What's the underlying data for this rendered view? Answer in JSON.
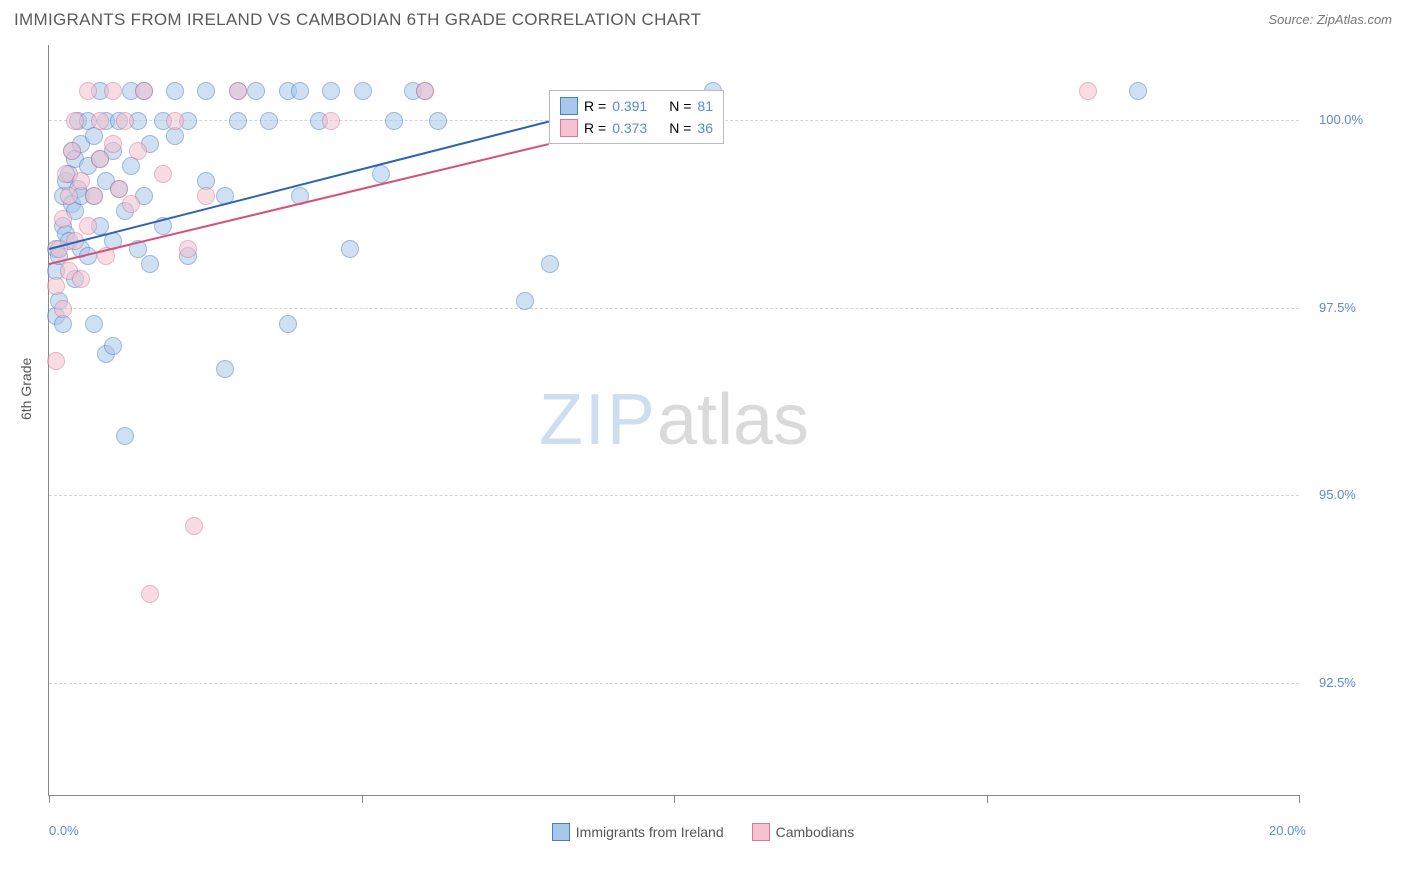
{
  "title": "IMMIGRANTS FROM IRELAND VS CAMBODIAN 6TH GRADE CORRELATION CHART",
  "source": "Source: ZipAtlas.com",
  "ylabel": "6th Grade",
  "watermark": {
    "zip": "ZIP",
    "atlas": "atlas"
  },
  "chart": {
    "type": "scatter",
    "xlim": [
      0,
      20
    ],
    "ylim": [
      91,
      101
    ],
    "xtick_positions": [
      0,
      5,
      10,
      15,
      20
    ],
    "xtick_labels": [
      "0.0%",
      "",
      "",
      "",
      "20.0%"
    ],
    "ytick_positions": [
      92.5,
      95.0,
      97.5,
      100.0
    ],
    "ytick_labels": [
      "92.5%",
      "95.0%",
      "97.5%",
      "100.0%"
    ],
    "grid_color": "#d5d5d5",
    "axis_color": "#888888",
    "background_color": "#ffffff",
    "marker_size": 16,
    "marker_opacity": 0.55
  },
  "series": [
    {
      "name": "Immigrants from Ireland",
      "fill": "#a9c7ea",
      "stroke": "#4b7fc0",
      "line_color": "#2e63b3",
      "r_label": "R =",
      "r": "0.391",
      "n_label": "N =",
      "n": "81",
      "trend": {
        "x1": 0,
        "y1": 98.3,
        "x2": 8.0,
        "y2": 100.0
      },
      "points": [
        [
          0.1,
          97.4
        ],
        [
          0.1,
          98.0
        ],
        [
          0.1,
          98.3
        ],
        [
          0.15,
          97.6
        ],
        [
          0.15,
          98.2
        ],
        [
          0.2,
          97.3
        ],
        [
          0.2,
          98.6
        ],
        [
          0.2,
          99.0
        ],
        [
          0.25,
          98.5
        ],
        [
          0.25,
          99.2
        ],
        [
          0.3,
          98.4
        ],
        [
          0.3,
          99.3
        ],
        [
          0.35,
          98.9
        ],
        [
          0.35,
          99.6
        ],
        [
          0.4,
          97.9
        ],
        [
          0.4,
          98.8
        ],
        [
          0.4,
          99.5
        ],
        [
          0.45,
          99.1
        ],
        [
          0.45,
          100.0
        ],
        [
          0.5,
          98.3
        ],
        [
          0.5,
          99.0
        ],
        [
          0.5,
          99.7
        ],
        [
          0.6,
          98.2
        ],
        [
          0.6,
          99.4
        ],
        [
          0.6,
          100.0
        ],
        [
          0.7,
          97.3
        ],
        [
          0.7,
          99.0
        ],
        [
          0.7,
          99.8
        ],
        [
          0.8,
          98.6
        ],
        [
          0.8,
          99.5
        ],
        [
          0.8,
          100.4
        ],
        [
          0.9,
          96.9
        ],
        [
          0.9,
          99.2
        ],
        [
          0.9,
          100.0
        ],
        [
          1.0,
          97.0
        ],
        [
          1.0,
          98.4
        ],
        [
          1.0,
          99.6
        ],
        [
          1.1,
          99.1
        ],
        [
          1.1,
          100.0
        ],
        [
          1.2,
          95.8
        ],
        [
          1.2,
          98.8
        ],
        [
          1.3,
          99.4
        ],
        [
          1.3,
          100.4
        ],
        [
          1.4,
          98.3
        ],
        [
          1.4,
          100.0
        ],
        [
          1.5,
          99.0
        ],
        [
          1.5,
          100.4
        ],
        [
          1.6,
          98.1
        ],
        [
          1.6,
          99.7
        ],
        [
          1.8,
          98.6
        ],
        [
          1.8,
          100.0
        ],
        [
          2.0,
          99.8
        ],
        [
          2.0,
          100.4
        ],
        [
          2.2,
          98.2
        ],
        [
          2.2,
          100.0
        ],
        [
          2.5,
          99.2
        ],
        [
          2.5,
          100.4
        ],
        [
          2.8,
          96.7
        ],
        [
          2.8,
          99.0
        ],
        [
          3.0,
          100.0
        ],
        [
          3.0,
          100.4
        ],
        [
          3.3,
          100.4
        ],
        [
          3.5,
          100.0
        ],
        [
          3.8,
          97.3
        ],
        [
          3.8,
          100.4
        ],
        [
          4.0,
          99.0
        ],
        [
          4.0,
          100.4
        ],
        [
          4.3,
          100.0
        ],
        [
          4.5,
          100.4
        ],
        [
          4.8,
          98.3
        ],
        [
          5.0,
          100.4
        ],
        [
          5.3,
          99.3
        ],
        [
          5.5,
          100.0
        ],
        [
          5.8,
          100.4
        ],
        [
          6.0,
          100.4
        ],
        [
          6.2,
          100.0
        ],
        [
          7.6,
          97.6
        ],
        [
          8.0,
          98.1
        ],
        [
          10.3,
          100.0
        ],
        [
          10.6,
          100.4
        ],
        [
          17.4,
          100.4
        ]
      ]
    },
    {
      "name": "Cambodians",
      "fill": "#f3c1cf",
      "stroke": "#d67a96",
      "line_color": "#d94f78",
      "r_label": "R =",
      "r": "0.373",
      "n_label": "N =",
      "n": "36",
      "trend": {
        "x1": 0,
        "y1": 98.1,
        "x2": 8.0,
        "y2": 99.7
      },
      "points": [
        [
          0.1,
          96.8
        ],
        [
          0.1,
          97.8
        ],
        [
          0.15,
          98.3
        ],
        [
          0.2,
          97.5
        ],
        [
          0.2,
          98.7
        ],
        [
          0.25,
          99.3
        ],
        [
          0.3,
          98.0
        ],
        [
          0.3,
          99.0
        ],
        [
          0.35,
          99.6
        ],
        [
          0.4,
          98.4
        ],
        [
          0.4,
          100.0
        ],
        [
          0.5,
          97.9
        ],
        [
          0.5,
          99.2
        ],
        [
          0.6,
          98.6
        ],
        [
          0.6,
          100.4
        ],
        [
          0.7,
          99.0
        ],
        [
          0.8,
          99.5
        ],
        [
          0.8,
          100.0
        ],
        [
          0.9,
          98.2
        ],
        [
          1.0,
          99.7
        ],
        [
          1.0,
          100.4
        ],
        [
          1.1,
          99.1
        ],
        [
          1.2,
          100.0
        ],
        [
          1.3,
          98.9
        ],
        [
          1.4,
          99.6
        ],
        [
          1.5,
          100.4
        ],
        [
          1.6,
          93.7
        ],
        [
          1.8,
          99.3
        ],
        [
          2.0,
          100.0
        ],
        [
          2.2,
          98.3
        ],
        [
          2.3,
          94.6
        ],
        [
          2.5,
          99.0
        ],
        [
          3.0,
          100.4
        ],
        [
          4.5,
          100.0
        ],
        [
          6.0,
          100.4
        ],
        [
          16.6,
          100.4
        ]
      ]
    }
  ],
  "bottom_legend": [
    {
      "label": "Immigrants from Ireland",
      "fill": "#a9c7ea",
      "stroke": "#4b7fc0"
    },
    {
      "label": "Cambodians",
      "fill": "#f3c1cf",
      "stroke": "#d67a96"
    }
  ]
}
